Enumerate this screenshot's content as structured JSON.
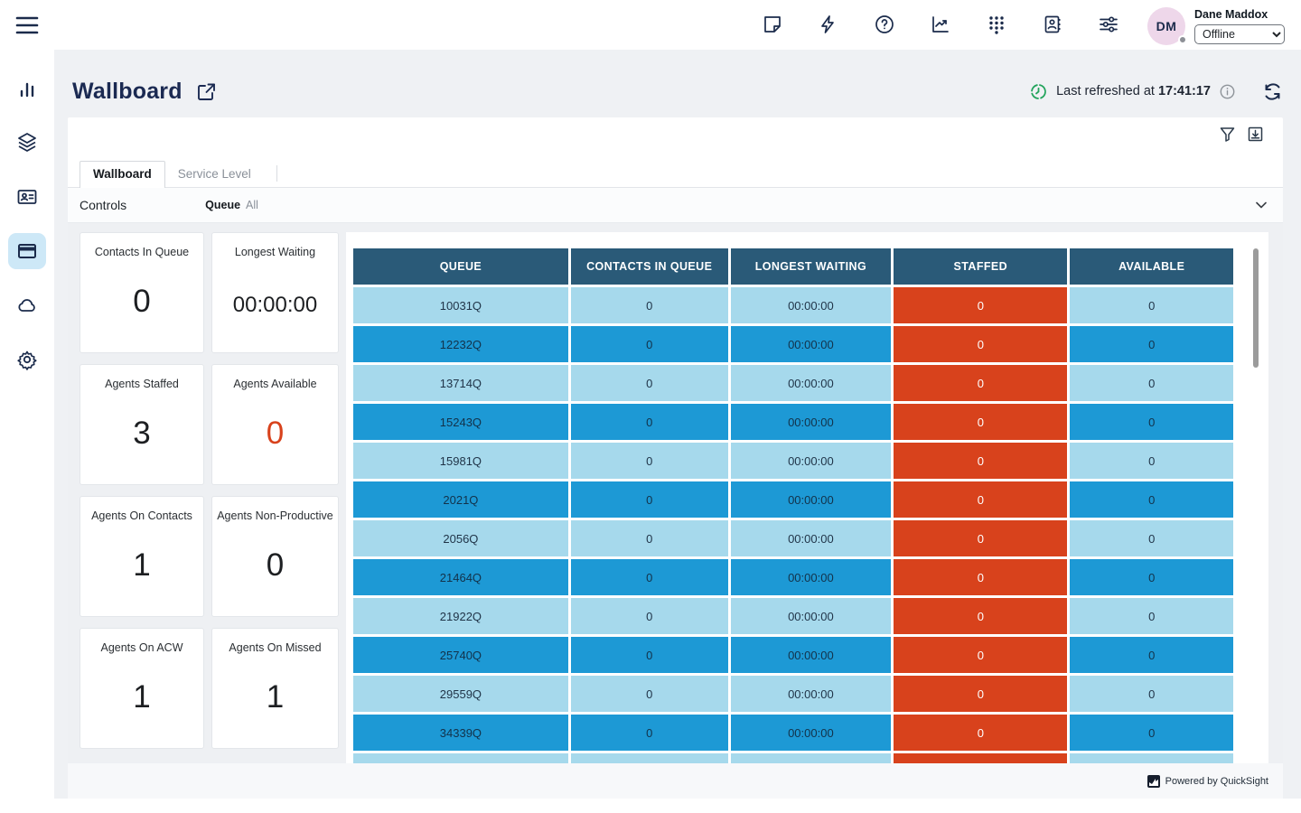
{
  "topbar": {
    "icons": [
      "notes-icon",
      "lightning-icon",
      "help-icon",
      "metrics-icon",
      "dialpad-icon",
      "directory-icon",
      "sliders-icon"
    ],
    "user": {
      "initials": "DM",
      "name": "Dane Maddox",
      "status": "Offline"
    }
  },
  "sidebar": {
    "items": [
      "analytics-icon",
      "layers-icon",
      "contact-card-icon",
      "wallboard-icon",
      "cloud-icon",
      "settings-gear-icon"
    ],
    "active_item": "wallboard"
  },
  "header": {
    "title": "Wallboard",
    "last_refreshed_label": "Last refreshed at ",
    "last_refreshed_time": "17:41:17"
  },
  "tabs": [
    {
      "label": "Wallboard",
      "active": true
    },
    {
      "label": "Service Level",
      "active": false
    }
  ],
  "controls": {
    "label": "Controls",
    "filter_name": "Queue",
    "filter_value": "All"
  },
  "cards": [
    {
      "label": "Contacts In Queue",
      "value": "0",
      "accent": false
    },
    {
      "label": "Longest Waiting",
      "value": "00:00:00",
      "accent": false
    },
    {
      "label": "Agents Staffed",
      "value": "3",
      "accent": false
    },
    {
      "label": "Agents Available",
      "value": "0",
      "accent": true
    },
    {
      "label": "Agents On Contacts",
      "value": "1",
      "accent": false
    },
    {
      "label": "Agents Non-Productive",
      "value": "0",
      "accent": false
    },
    {
      "label": "Agents On ACW",
      "value": "1",
      "accent": false
    },
    {
      "label": "Agents On Missed",
      "value": "1",
      "accent": false
    }
  ],
  "table": {
    "columns": [
      "QUEUE",
      "CONTACTS IN QUEUE",
      "LONGEST WAITING",
      "STAFFED",
      "AVAILABLE"
    ],
    "column_keys": [
      "queue",
      "contacts-in-queue",
      "longest-waiting",
      "staffed",
      "available"
    ],
    "rows": [
      [
        "10031Q",
        "0",
        "00:00:00",
        "0",
        "0"
      ],
      [
        "12232Q",
        "0",
        "00:00:00",
        "0",
        "0"
      ],
      [
        "13714Q",
        "0",
        "00:00:00",
        "0",
        "0"
      ],
      [
        "15243Q",
        "0",
        "00:00:00",
        "0",
        "0"
      ],
      [
        "15981Q",
        "0",
        "00:00:00",
        "0",
        "0"
      ],
      [
        "2021Q",
        "0",
        "00:00:00",
        "0",
        "0"
      ],
      [
        "2056Q",
        "0",
        "00:00:00",
        "0",
        "0"
      ],
      [
        "21464Q",
        "0",
        "00:00:00",
        "0",
        "0"
      ],
      [
        "21922Q",
        "0",
        "00:00:00",
        "0",
        "0"
      ],
      [
        "25740Q",
        "0",
        "00:00:00",
        "0",
        "0"
      ],
      [
        "29559Q",
        "0",
        "00:00:00",
        "0",
        "0"
      ],
      [
        "34339Q",
        "0",
        "00:00:00",
        "0",
        "0"
      ],
      [
        "",
        "",
        "",
        "",
        ""
      ]
    ]
  },
  "footer": {
    "credit": "Powered by QuickSight"
  },
  "colors": {
    "accent_orange": "#d8421c",
    "table_header_bg": "#2a5a78",
    "row_light": "#a6d9ec",
    "row_medium": "#1d99d5",
    "refresh_green": "#23a45c",
    "selected_nav_bg": "#cde8f7",
    "avatar_bg": "#eed7ea"
  }
}
